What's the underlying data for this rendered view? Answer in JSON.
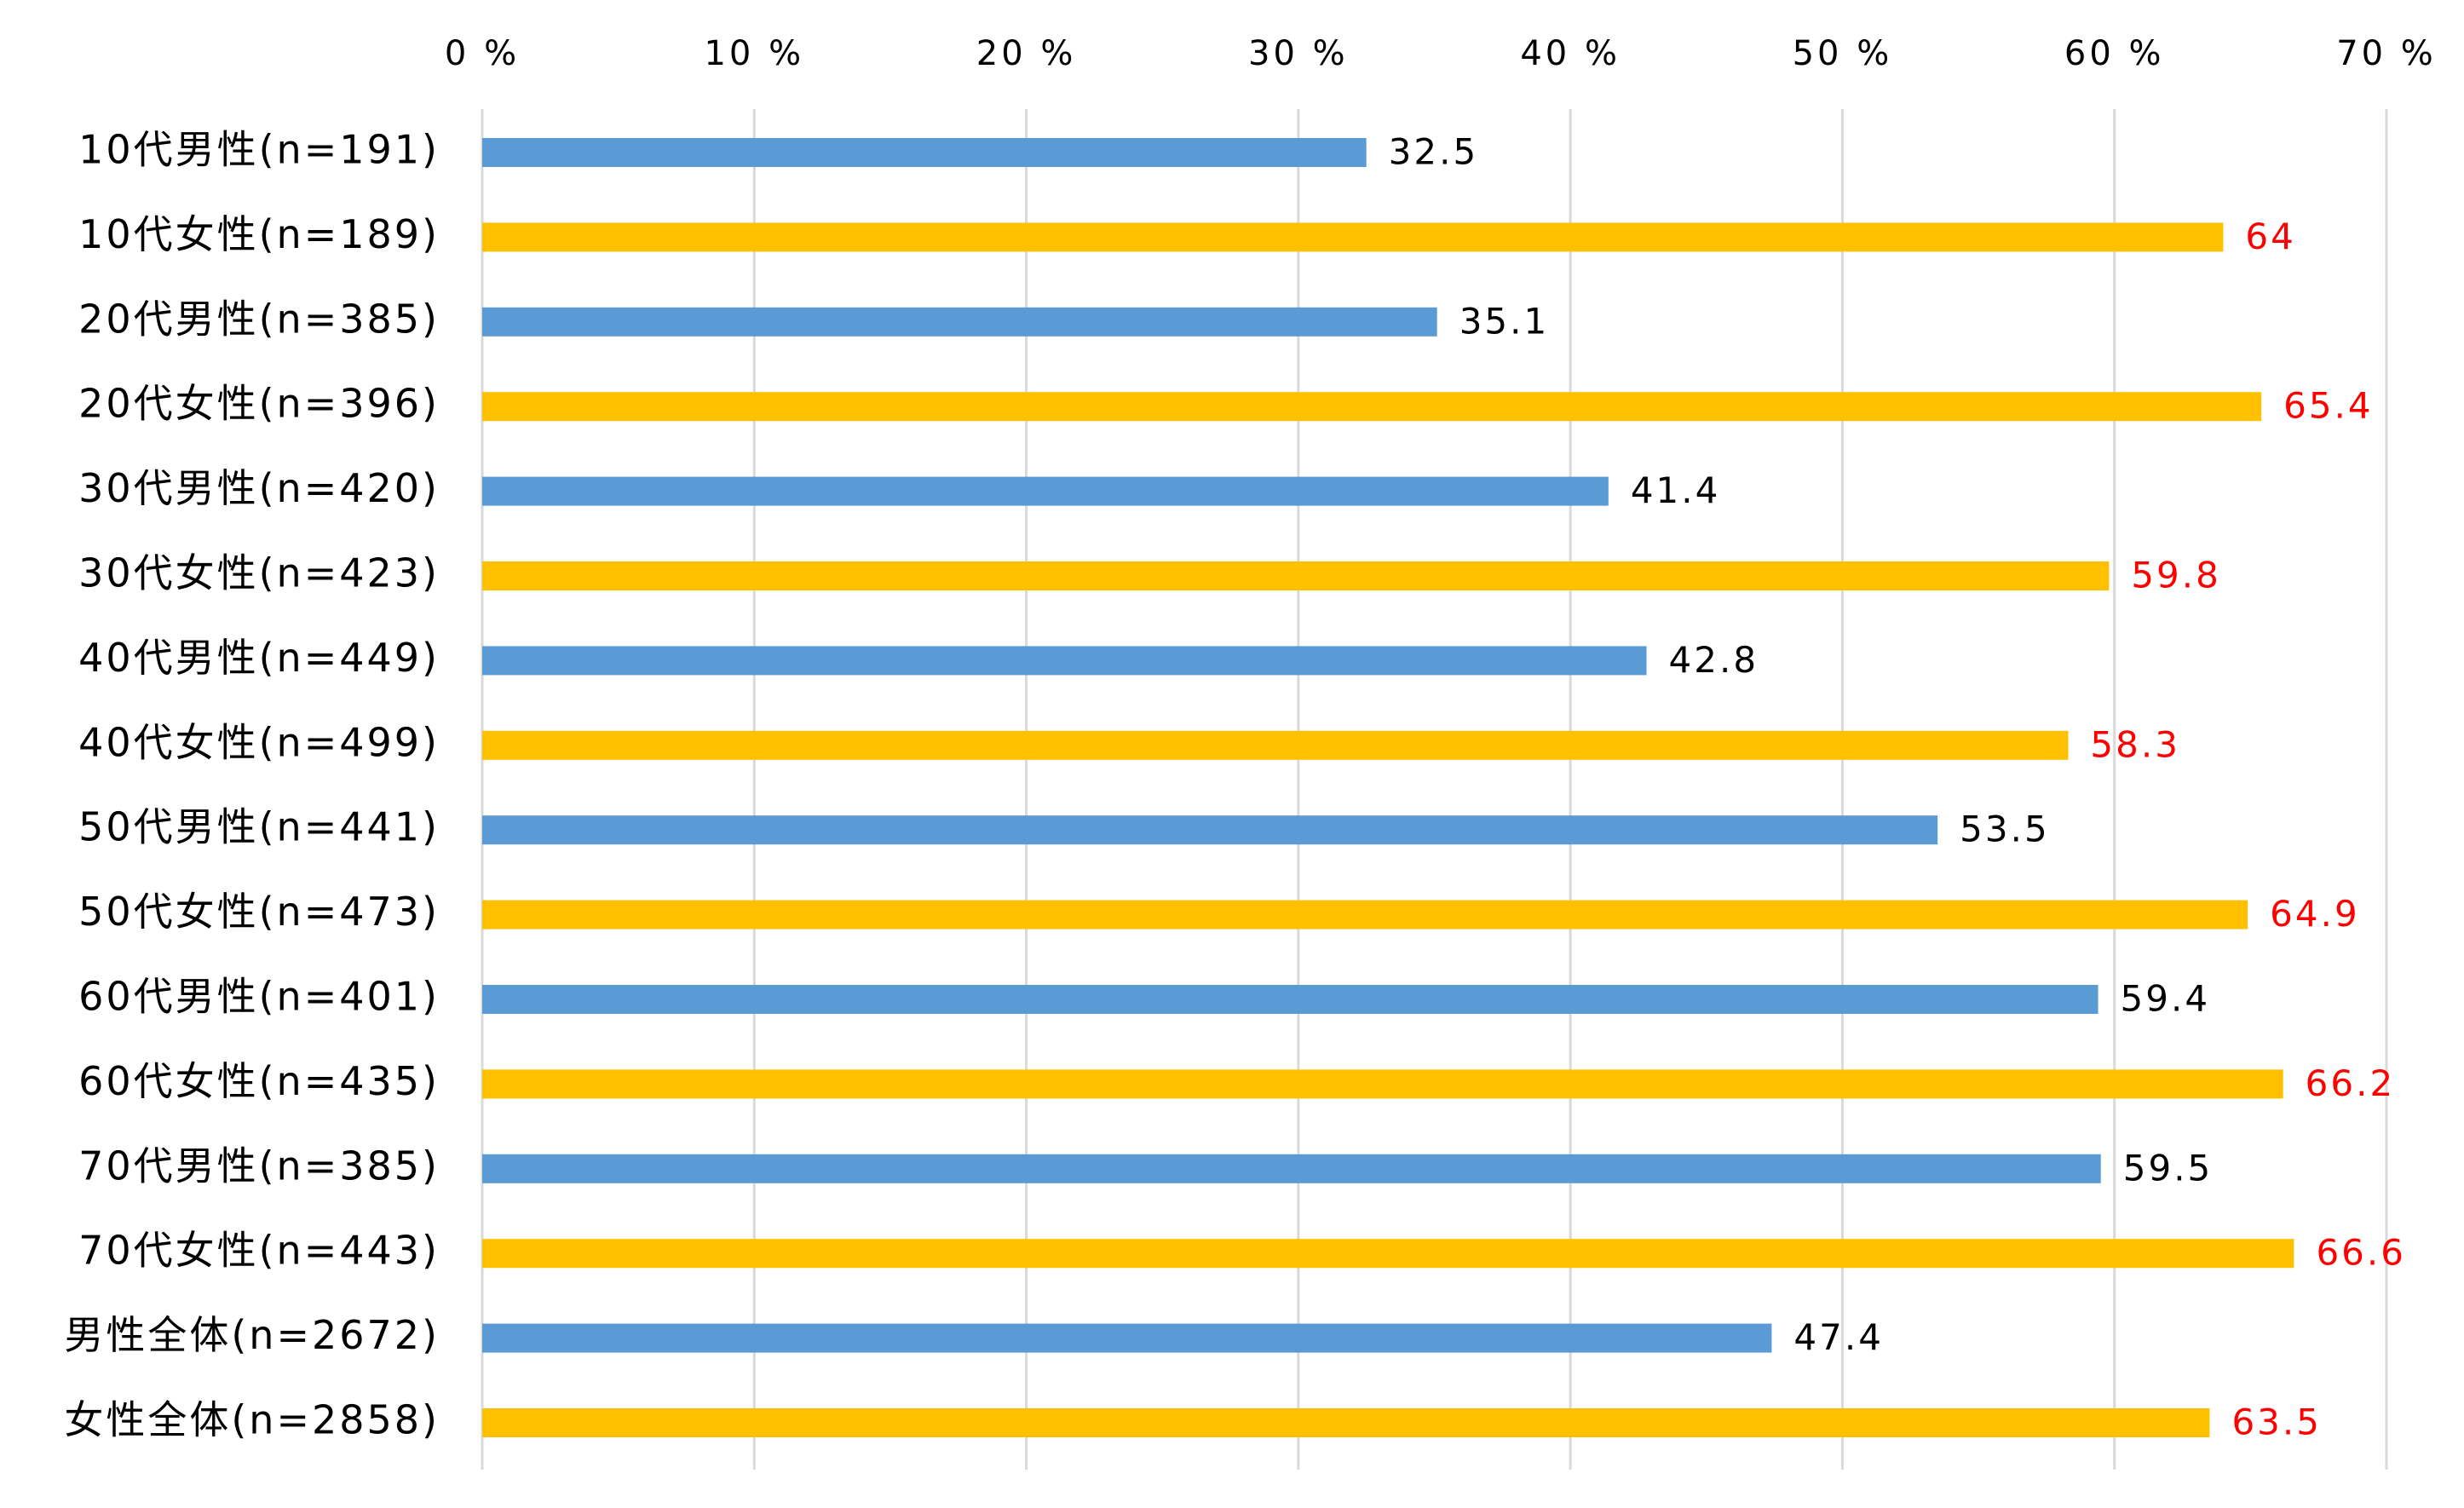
{
  "chart_data": {
    "type": "bar",
    "orientation": "horizontal",
    "title": "",
    "xlabel": "",
    "ylabel": "",
    "xlim": [
      0,
      70
    ],
    "x_ticks": [
      "0 %",
      "10 %",
      "20 %",
      "30 %",
      "40 %",
      "50 %",
      "60 %",
      "70 %"
    ],
    "x_tick_values": [
      0,
      10,
      20,
      30,
      40,
      50,
      60,
      70
    ],
    "grid": true,
    "legend": "none",
    "categories": [
      "10代男性(n=191)",
      "10代女性(n=189)",
      "20代男性(n=385)",
      "20代女性(n=396)",
      "30代男性(n=420)",
      "30代女性(n=423)",
      "40代男性(n=449)",
      "40代女性(n=499)",
      "50代男性(n=441)",
      "50代女性(n=473)",
      "60代男性(n=401)",
      "60代女性(n=435)",
      "70代男性(n=385)",
      "70代女性(n=443)",
      "男性全体(n=2672)",
      "女性全体(n=2858)"
    ],
    "values": [
      32.5,
      64,
      35.1,
      65.4,
      41.4,
      59.8,
      42.8,
      58.3,
      53.5,
      64.9,
      59.4,
      66.2,
      59.5,
      66.6,
      47.4,
      63.5
    ],
    "value_labels": [
      "32.5",
      "64",
      "35.1",
      "65.4",
      "41.4",
      "59.8",
      "42.8",
      "58.3",
      "53.5",
      "64.9",
      "59.4",
      "66.2",
      "59.5",
      "66.6",
      "47.4",
      "63.5"
    ],
    "groups": [
      "male",
      "female",
      "male",
      "female",
      "male",
      "female",
      "male",
      "female",
      "male",
      "female",
      "male",
      "female",
      "male",
      "female",
      "male",
      "female"
    ],
    "colors": {
      "male_bar": "#5B9BD5",
      "female_bar": "#FFC000",
      "male_label": "#000000",
      "female_label": "#FF0000",
      "gridline": "#D9D9D9"
    }
  }
}
